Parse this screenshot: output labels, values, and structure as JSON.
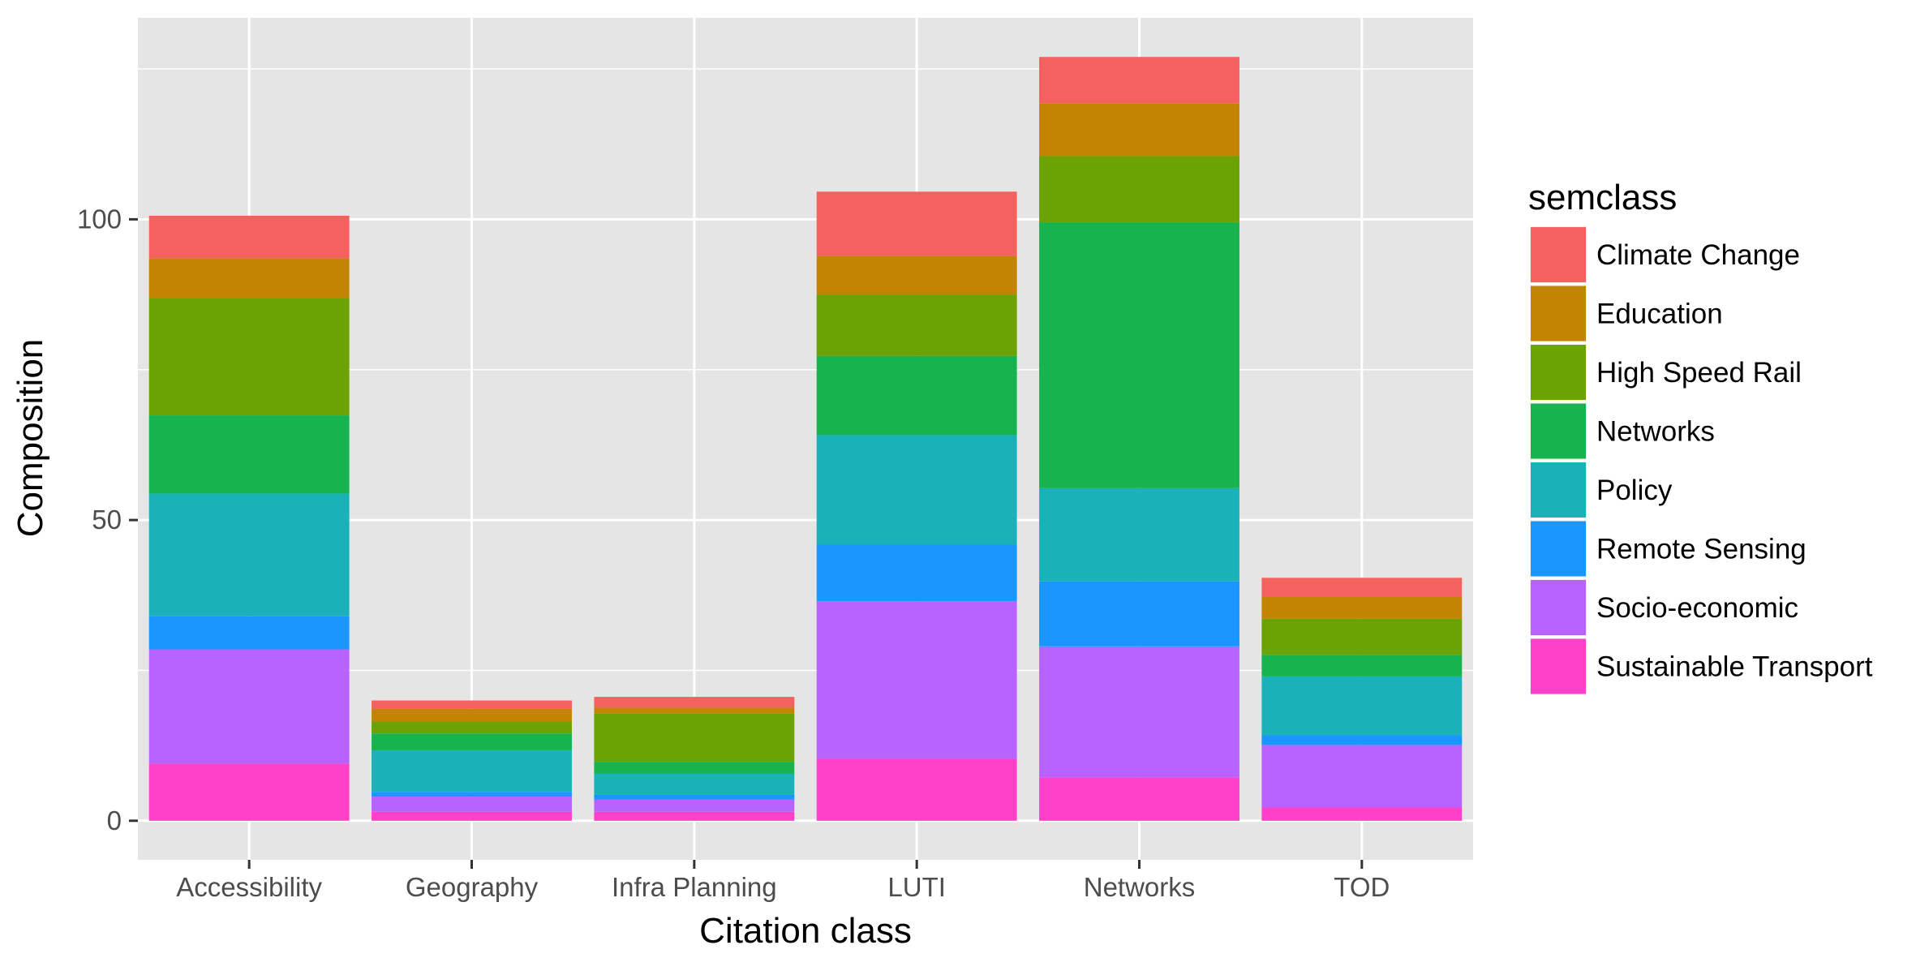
{
  "chart_data": {
    "type": "bar",
    "stacked": true,
    "title": "",
    "xlabel": "Citation class",
    "ylabel": "Composition",
    "categories": [
      "Accessibility",
      "Geography",
      "Infra Planning",
      "LUTI",
      "Networks",
      "TOD"
    ],
    "ylim": [
      -6.5,
      133.5
    ],
    "yticks": [
      0,
      50,
      100
    ],
    "ytick_labels": [
      "0",
      "50",
      "100"
    ],
    "grid": true,
    "legend_title": "semclass",
    "legend_position": "right",
    "series": [
      {
        "name": "Sustainable Transport",
        "color": "#FF40C8",
        "values": [
          9.5,
          1.5,
          1.5,
          10.3,
          7.2,
          2.2
        ]
      },
      {
        "name": "Socio-economic",
        "color": "#B862FF",
        "values": [
          19.0,
          2.5,
          2.0,
          26.2,
          21.8,
          10.4
        ]
      },
      {
        "name": "Remote Sensing",
        "color": "#1996FF",
        "values": [
          5.5,
          0.8,
          0.8,
          9.4,
          10.8,
          1.6
        ]
      },
      {
        "name": "Policy",
        "color": "#18B2B8",
        "values": [
          20.4,
          6.9,
          3.5,
          18.2,
          15.5,
          9.8
        ]
      },
      {
        "name": "Networks",
        "color": "#17B34F",
        "values": [
          13.0,
          2.8,
          2.0,
          13.2,
          44.2,
          3.6
        ]
      },
      {
        "name": "High Speed Rail",
        "color": "#6BA305",
        "values": [
          19.5,
          2.0,
          8.0,
          10.2,
          11.0,
          6.0
        ]
      },
      {
        "name": "Education",
        "color": "#C38403",
        "values": [
          6.6,
          2.1,
          1.0,
          6.4,
          8.8,
          3.6
        ]
      },
      {
        "name": "Climate Change",
        "color": "#F4615E",
        "values": [
          7.1,
          1.4,
          1.8,
          10.7,
          7.7,
          3.2
        ]
      }
    ]
  }
}
